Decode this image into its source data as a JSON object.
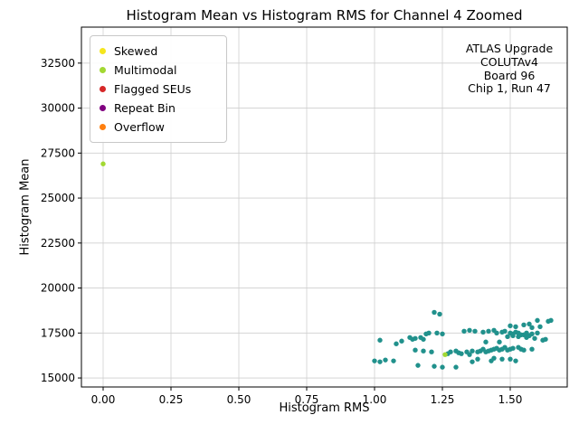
{
  "chart_data": {
    "type": "scatter",
    "title": "Histogram Mean vs Histogram RMS for Channel 4 Zoomed",
    "xlabel": "Histogram RMS",
    "ylabel": "Histogram Mean",
    "xlim": [
      -0.08,
      1.71
    ],
    "ylim": [
      14500,
      34500
    ],
    "xticks": [
      0,
      0.25,
      0.5,
      0.75,
      1.0,
      1.25,
      1.5
    ],
    "xtick_labels": [
      "0.00",
      "0.25",
      "0.50",
      "0.75",
      "1.00",
      "1.25",
      "1.50"
    ],
    "yticks": [
      15000,
      17500,
      20000,
      22500,
      25000,
      27500,
      30000,
      32500
    ],
    "ytick_labels": [
      "15000",
      "17500",
      "20000",
      "22500",
      "25000",
      "27500",
      "30000",
      "32500"
    ],
    "grid": true,
    "legend_position": "upper left",
    "legend": [
      {
        "label": "Skewed",
        "color": "#f5e61d"
      },
      {
        "label": "Multimodal",
        "color": "#a2d832"
      },
      {
        "label": "Flagged SEUs",
        "color": "#d62728"
      },
      {
        "label": "Repeat Bin",
        "color": "#800080"
      },
      {
        "label": "Overflow",
        "color": "#ff7f0e"
      }
    ],
    "annotation": {
      "lines": [
        "ATLAS Upgrade",
        "COLUTAv4",
        "Board 96",
        "Chip 1, Run 47"
      ]
    },
    "series": [
      {
        "name": "Data",
        "color": "#21918c",
        "points": [
          [
            1.0,
            15950
          ],
          [
            1.02,
            15900
          ],
          [
            1.04,
            16000
          ],
          [
            1.02,
            17100
          ],
          [
            1.07,
            15950
          ],
          [
            1.08,
            16900
          ],
          [
            1.1,
            17050
          ],
          [
            1.13,
            17250
          ],
          [
            1.14,
            17150
          ],
          [
            1.15,
            17200
          ],
          [
            1.15,
            16550
          ],
          [
            1.16,
            15700
          ],
          [
            1.17,
            17250
          ],
          [
            1.18,
            17150
          ],
          [
            1.18,
            16500
          ],
          [
            1.2,
            17500
          ],
          [
            1.21,
            16450
          ],
          [
            1.22,
            18650
          ],
          [
            1.24,
            18550
          ],
          [
            1.22,
            15650
          ],
          [
            1.25,
            15600
          ],
          [
            1.25,
            17450
          ],
          [
            1.27,
            16350
          ],
          [
            1.28,
            16450
          ],
          [
            1.3,
            15600
          ],
          [
            1.3,
            16500
          ],
          [
            1.31,
            16400
          ],
          [
            1.32,
            16350
          ],
          [
            1.33,
            17600
          ],
          [
            1.34,
            16450
          ],
          [
            1.35,
            17650
          ],
          [
            1.35,
            16300
          ],
          [
            1.36,
            16500
          ],
          [
            1.36,
            15900
          ],
          [
            1.37,
            17600
          ],
          [
            1.38,
            16450
          ],
          [
            1.38,
            16050
          ],
          [
            1.39,
            16500
          ],
          [
            1.4,
            17550
          ],
          [
            1.4,
            16600
          ],
          [
            1.41,
            16450
          ],
          [
            1.41,
            17000
          ],
          [
            1.42,
            17600
          ],
          [
            1.42,
            16500
          ],
          [
            1.43,
            16550
          ],
          [
            1.43,
            15950
          ],
          [
            1.44,
            17650
          ],
          [
            1.44,
            16600
          ],
          [
            1.45,
            17500
          ],
          [
            1.45,
            16650
          ],
          [
            1.46,
            16550
          ],
          [
            1.46,
            17000
          ],
          [
            1.47,
            17550
          ],
          [
            1.47,
            16600
          ],
          [
            1.48,
            17600
          ],
          [
            1.48,
            16700
          ],
          [
            1.49,
            17300
          ],
          [
            1.49,
            16550
          ],
          [
            1.5,
            17900
          ],
          [
            1.5,
            17500
          ],
          [
            1.5,
            16600
          ],
          [
            1.5,
            16050
          ],
          [
            1.51,
            17450
          ],
          [
            1.51,
            17350
          ],
          [
            1.51,
            16650
          ],
          [
            1.52,
            17850
          ],
          [
            1.52,
            17550
          ],
          [
            1.52,
            15950
          ],
          [
            1.53,
            17500
          ],
          [
            1.53,
            17300
          ],
          [
            1.53,
            16700
          ],
          [
            1.54,
            17400
          ],
          [
            1.54,
            16600
          ],
          [
            1.55,
            17950
          ],
          [
            1.55,
            17400
          ],
          [
            1.55,
            16550
          ],
          [
            1.56,
            17500
          ],
          [
            1.56,
            17250
          ],
          [
            1.57,
            18000
          ],
          [
            1.57,
            17350
          ],
          [
            1.58,
            17800
          ],
          [
            1.58,
            17450
          ],
          [
            1.58,
            16600
          ],
          [
            1.59,
            17200
          ],
          [
            1.6,
            18200
          ],
          [
            1.6,
            17500
          ],
          [
            1.61,
            17850
          ],
          [
            1.62,
            17100
          ],
          [
            1.63,
            17150
          ],
          [
            1.64,
            18150
          ],
          [
            1.65,
            18200
          ],
          [
            1.19,
            17450
          ],
          [
            1.23,
            17500
          ],
          [
            1.44,
            16100
          ],
          [
            1.47,
            16050
          ]
        ]
      },
      {
        "name": "Skewed",
        "color": "#f5e61d",
        "points": []
      },
      {
        "name": "Multimodal",
        "color": "#a2d832",
        "points": [
          [
            0.0,
            26900
          ],
          [
            1.26,
            16300
          ]
        ]
      },
      {
        "name": "Flagged SEUs",
        "color": "#d62728",
        "points": []
      },
      {
        "name": "Repeat Bin",
        "color": "#800080",
        "points": []
      },
      {
        "name": "Overflow",
        "color": "#ff7f0e",
        "points": []
      }
    ]
  }
}
